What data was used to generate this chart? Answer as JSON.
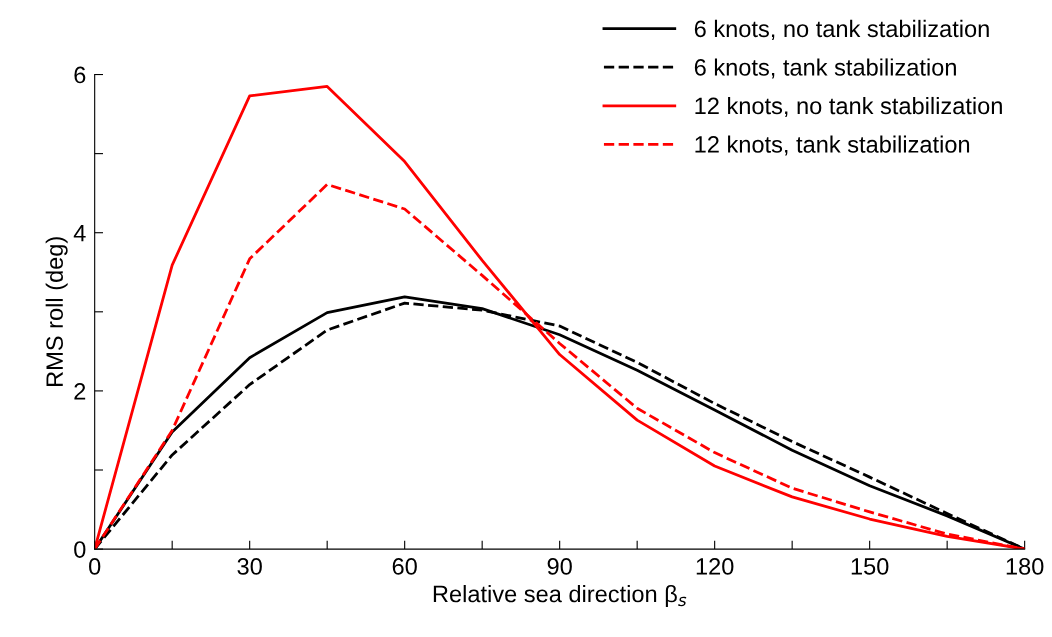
{
  "chart_data": {
    "type": "line",
    "xlabel": "Relative sea direction β$_{s}$",
    "ylabel": "RMS roll (deg)",
    "x": [
      0,
      15,
      30,
      45,
      60,
      75,
      90,
      105,
      120,
      135,
      150,
      165,
      180
    ],
    "xlim": [
      0,
      180
    ],
    "ylim": [
      0,
      6
    ],
    "xticks": [
      0,
      {
        "value": 15,
        "label": null
      },
      30,
      {
        "value": 45,
        "label": null
      },
      60,
      {
        "value": 75,
        "label": null
      },
      90,
      {
        "value": 105,
        "label": null
      },
      120,
      {
        "value": 135,
        "label": null
      },
      150,
      {
        "value": 165,
        "label": null
      },
      180
    ],
    "yticks": [
      0,
      {
        "value": 1,
        "label": null
      },
      2,
      {
        "value": 3,
        "label": null
      },
      4,
      {
        "value": 5,
        "label": null
      },
      6
    ],
    "grid": false,
    "legend": "top right",
    "marker": "none",
    "series": [
      {
        "name": "6 knots, no tank stabilization",
        "color": "#000000",
        "line_style": "solid",
        "values": [
          0,
          1.48,
          2.42,
          2.99,
          3.19,
          3.04,
          2.71,
          2.26,
          1.76,
          1.25,
          0.8,
          0.42,
          0
        ]
      },
      {
        "name": "6 knots, tank stabilization",
        "color": "#000000",
        "line_style": "dashed",
        "values": [
          0,
          1.19,
          2.08,
          2.77,
          3.11,
          3.02,
          2.82,
          2.36,
          1.84,
          1.36,
          0.91,
          0.45,
          0
        ]
      },
      {
        "name": "12 knots, no tank stabilization",
        "color": "#ff0000",
        "line_style": "solid",
        "values": [
          0,
          3.59,
          5.73,
          5.85,
          4.9,
          3.65,
          2.46,
          1.63,
          1.05,
          0.66,
          0.38,
          0.16,
          0
        ]
      },
      {
        "name": "12 knots, tank stabilization",
        "color": "#ff0000",
        "line_style": "dashed",
        "values": [
          0,
          1.5,
          3.67,
          4.61,
          4.3,
          3.46,
          2.6,
          1.78,
          1.22,
          0.77,
          0.47,
          0.19,
          0
        ]
      }
    ]
  }
}
